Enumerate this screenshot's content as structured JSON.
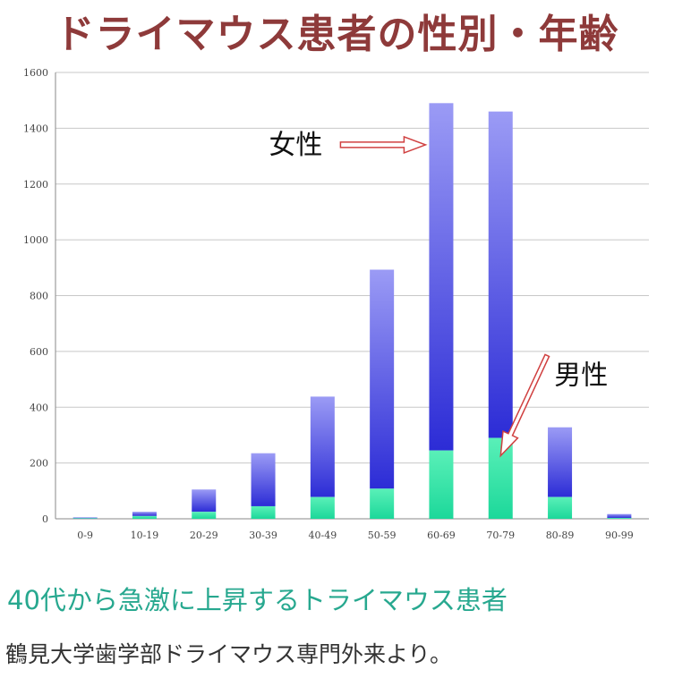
{
  "title": "ドライマウス患者の性別・年齢",
  "subtitle": "40代から急激に上昇するトライマウス患者",
  "source": "鶴見大学歯学部ドライマウス専門外来より。",
  "colors": {
    "female_top": "#9b9bf5",
    "female_bottom": "#2c2cd6",
    "male_top": "#5af0b8",
    "male_bottom": "#1cd89a",
    "title": "#8e3a3a",
    "subtitle": "#27a88f"
  },
  "chart_data": {
    "type": "bar",
    "stacked": true,
    "categories": [
      "0-9",
      "10-19",
      "20-29",
      "30-39",
      "40-49",
      "50-59",
      "60-69",
      "70-79",
      "80-89",
      "90-99"
    ],
    "series": [
      {
        "name": "男性",
        "values": [
          2,
          10,
          25,
          45,
          78,
          108,
          245,
          290,
          78,
          3
        ]
      },
      {
        "name": "女性",
        "values": [
          3,
          15,
          80,
          190,
          360,
          785,
          1245,
          1170,
          250,
          14
        ]
      }
    ],
    "ylim": [
      0,
      1600
    ],
    "yticks": [
      0,
      200,
      400,
      600,
      800,
      1000,
      1200,
      1400,
      1600
    ],
    "grid": true,
    "annotations": [
      {
        "text": "女性",
        "target_series": "女性",
        "target_category": "60-69"
      },
      {
        "text": "男性",
        "target_series": "男性",
        "target_category": "70-79"
      }
    ]
  }
}
